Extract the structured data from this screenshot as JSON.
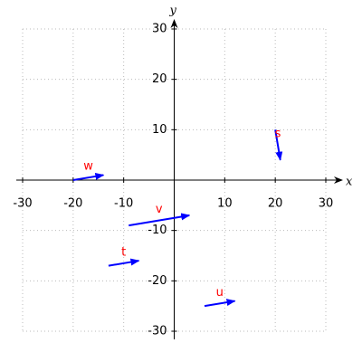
{
  "chart_data": {
    "type": "vector",
    "xlabel": "x",
    "ylabel": "y",
    "xlim": [
      -30,
      30
    ],
    "ylim": [
      -30,
      30
    ],
    "xticks": [
      -30,
      -20,
      -10,
      10,
      20,
      30
    ],
    "yticks": [
      -30,
      -20,
      -10,
      10,
      20,
      30
    ],
    "grid": true,
    "color": "#0000ff",
    "label_color": "#ff0000",
    "vectors": [
      {
        "name": "s",
        "x0": 20,
        "y0": 10,
        "x1": 21,
        "y1": 4
      },
      {
        "name": "w",
        "x0": -20,
        "y0": 0,
        "x1": -14,
        "y1": 1
      },
      {
        "name": "v",
        "x0": -9,
        "y0": -9,
        "x1": 3,
        "y1": -7
      },
      {
        "name": "t",
        "x0": -13,
        "y0": -17,
        "x1": -7,
        "y1": -16
      },
      {
        "name": "u",
        "x0": 6,
        "y0": -25,
        "x1": 12,
        "y1": -24
      }
    ]
  }
}
